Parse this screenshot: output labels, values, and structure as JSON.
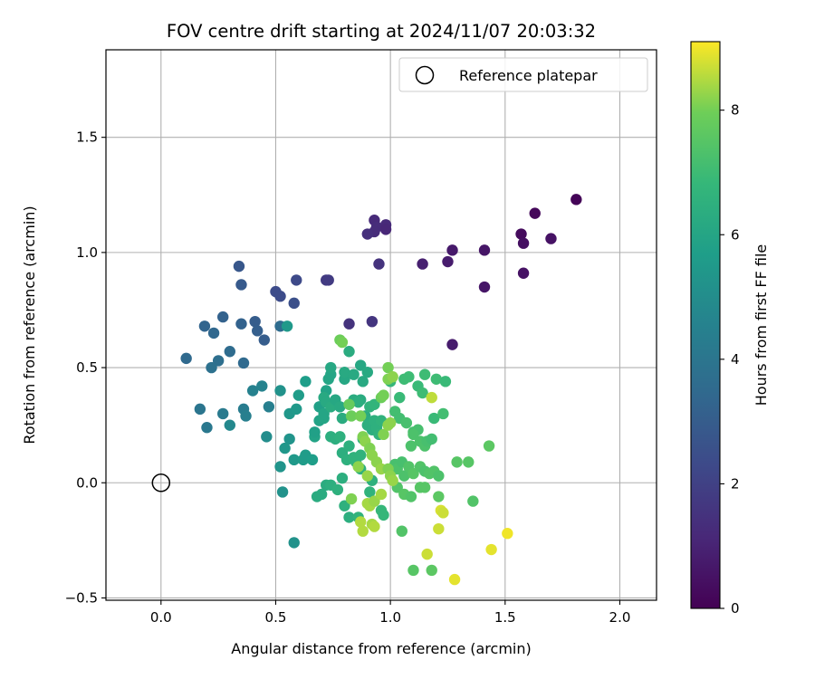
{
  "chart_data": {
    "type": "scatter",
    "title": "FOV centre drift starting at 2024/11/07 20:03:32",
    "xlabel": "Angular distance from reference (arcmin)",
    "ylabel": "Rotation from reference (arcmin)",
    "xlim": [
      -0.24,
      2.16
    ],
    "ylim": [
      -0.51,
      1.88
    ],
    "xticks": [
      0.0,
      0.5,
      1.0,
      1.5,
      2.0
    ],
    "xtick_labels": [
      "0.0",
      "0.5",
      "1.0",
      "1.5",
      "2.0"
    ],
    "yticks": [
      -0.5,
      0.0,
      0.5,
      1.0,
      1.5
    ],
    "ytick_labels": [
      "−0.5",
      "0.0",
      "0.5",
      "1.0",
      "1.5"
    ],
    "grid": true,
    "legend": {
      "position": "top-right",
      "entries": [
        "Reference platepar"
      ]
    },
    "reference": {
      "x": 0.0,
      "y": 0.0
    },
    "colorbar": {
      "label": "Hours from first FF file",
      "range": [
        0,
        9.1
      ],
      "ticks": [
        0,
        2,
        4,
        6,
        8
      ],
      "tick_labels": [
        "0",
        "2",
        "4",
        "6",
        "8"
      ],
      "colormap": "viridis"
    },
    "points": [
      [
        1.81,
        1.23,
        0.1
      ],
      [
        1.63,
        1.17,
        0.2
      ],
      [
        1.57,
        1.08,
        0.3
      ],
      [
        1.58,
        1.04,
        0.4
      ],
      [
        1.7,
        1.06,
        0.5
      ],
      [
        1.41,
        1.01,
        0.6
      ],
      [
        1.27,
        1.01,
        0.7
      ],
      [
        1.58,
        0.91,
        0.5
      ],
      [
        1.41,
        0.85,
        0.6
      ],
      [
        1.25,
        0.96,
        0.8
      ],
      [
        1.14,
        0.95,
        0.9
      ],
      [
        1.27,
        0.6,
        0.8
      ],
      [
        0.93,
        1.14,
        1.2
      ],
      [
        0.94,
        1.11,
        1.3
      ],
      [
        0.98,
        1.12,
        1.2
      ],
      [
        0.98,
        1.1,
        1.1
      ],
      [
        0.93,
        1.09,
        1.3
      ],
      [
        0.9,
        1.08,
        1.4
      ],
      [
        0.95,
        0.95,
        1.5
      ],
      [
        0.72,
        0.88,
        1.8
      ],
      [
        0.73,
        0.88,
        1.8
      ],
      [
        0.82,
        0.69,
        1.5
      ],
      [
        0.92,
        0.7,
        1.6
      ],
      [
        0.59,
        0.88,
        2.3
      ],
      [
        0.5,
        0.83,
        2.4
      ],
      [
        0.52,
        0.81,
        2.4
      ],
      [
        0.58,
        0.78,
        2.5
      ],
      [
        0.34,
        0.94,
        2.8
      ],
      [
        0.35,
        0.86,
        2.9
      ],
      [
        0.27,
        0.72,
        3.2
      ],
      [
        0.19,
        0.68,
        3.3
      ],
      [
        0.23,
        0.65,
        3.4
      ],
      [
        0.35,
        0.69,
        3.2
      ],
      [
        0.41,
        0.7,
        3.0
      ],
      [
        0.42,
        0.66,
        3.1
      ],
      [
        0.45,
        0.62,
        3.0
      ],
      [
        0.3,
        0.57,
        3.6
      ],
      [
        0.25,
        0.53,
        3.7
      ],
      [
        0.22,
        0.5,
        3.8
      ],
      [
        0.36,
        0.52,
        3.5
      ],
      [
        0.11,
        0.54,
        3.5
      ],
      [
        0.52,
        0.68,
        3.6
      ],
      [
        0.17,
        0.32,
        4.0
      ],
      [
        0.2,
        0.24,
        4.1
      ],
      [
        0.27,
        0.3,
        4.2
      ],
      [
        0.36,
        0.32,
        4.3
      ],
      [
        0.37,
        0.29,
        4.4
      ],
      [
        0.4,
        0.4,
        4.5
      ],
      [
        0.44,
        0.42,
        4.6
      ],
      [
        0.47,
        0.33,
        4.4
      ],
      [
        0.3,
        0.25,
        4.8
      ],
      [
        0.46,
        0.2,
        5.0
      ],
      [
        0.55,
        0.68,
        5.5
      ],
      [
        0.52,
        0.4,
        5.2
      ],
      [
        0.56,
        0.3,
        5.4
      ],
      [
        0.59,
        0.32,
        5.5
      ],
      [
        0.6,
        0.38,
        5.6
      ],
      [
        0.63,
        0.44,
        5.7
      ],
      [
        0.69,
        0.33,
        5.8
      ],
      [
        0.56,
        0.19,
        5.3
      ],
      [
        0.54,
        0.15,
        5.4
      ],
      [
        0.58,
        0.1,
        5.5
      ],
      [
        0.52,
        0.07,
        5.3
      ],
      [
        0.53,
        -0.04,
        5.2
      ],
      [
        0.58,
        -0.26,
        5.2
      ],
      [
        0.62,
        0.1,
        5.6
      ],
      [
        0.63,
        0.12,
        5.6
      ],
      [
        0.66,
        0.1,
        5.7
      ],
      [
        0.67,
        0.2,
        5.9
      ],
      [
        0.67,
        0.22,
        5.8
      ],
      [
        0.69,
        0.27,
        5.9
      ],
      [
        0.71,
        0.28,
        6.0
      ],
      [
        0.71,
        0.3,
        6.0
      ],
      [
        0.72,
        0.4,
        5.9
      ],
      [
        0.73,
        0.45,
        6.0
      ],
      [
        0.74,
        0.47,
        6.0
      ],
      [
        0.74,
        0.5,
        6.1
      ],
      [
        0.71,
        0.37,
        6.2
      ],
      [
        0.72,
        0.35,
        6.2
      ],
      [
        0.74,
        0.33,
        6.3
      ],
      [
        0.76,
        0.36,
        6.1
      ],
      [
        0.78,
        0.33,
        6.2
      ],
      [
        0.79,
        0.28,
        6.3
      ],
      [
        0.8,
        0.45,
        6.1
      ],
      [
        0.8,
        0.48,
        6.2
      ],
      [
        0.82,
        0.57,
        6.3
      ],
      [
        0.84,
        0.47,
        6.2
      ],
      [
        0.84,
        0.36,
        6.3
      ],
      [
        0.74,
        0.2,
        6.4
      ],
      [
        0.76,
        0.19,
        6.4
      ],
      [
        0.78,
        0.2,
        6.5
      ],
      [
        0.79,
        0.13,
        6.4
      ],
      [
        0.81,
        0.1,
        6.5
      ],
      [
        0.82,
        0.16,
        6.5
      ],
      [
        0.84,
        0.11,
        6.6
      ],
      [
        0.85,
        0.09,
        6.6
      ],
      [
        0.87,
        0.06,
        6.5
      ],
      [
        0.87,
        0.12,
        6.6
      ],
      [
        0.88,
        0.19,
        6.5
      ],
      [
        0.72,
        -0.01,
        6.3
      ],
      [
        0.74,
        -0.01,
        6.4
      ],
      [
        0.77,
        -0.03,
        6.5
      ],
      [
        0.79,
        0.02,
        6.4
      ],
      [
        0.7,
        -0.05,
        6.3
      ],
      [
        0.68,
        -0.06,
        6.3
      ],
      [
        0.8,
        -0.1,
        6.5
      ],
      [
        0.82,
        -0.15,
        6.4
      ],
      [
        0.86,
        -0.15,
        6.6
      ],
      [
        0.87,
        0.51,
        6.1
      ],
      [
        0.88,
        0.44,
        6.2
      ],
      [
        0.9,
        0.48,
        6.2
      ],
      [
        0.87,
        0.36,
        6.3
      ],
      [
        0.89,
        0.29,
        6.3
      ],
      [
        0.9,
        0.25,
        6.4
      ],
      [
        0.92,
        0.23,
        6.4
      ],
      [
        0.93,
        0.27,
        6.5
      ],
      [
        0.94,
        0.24,
        6.5
      ],
      [
        0.95,
        0.21,
        6.6
      ],
      [
        0.96,
        0.27,
        6.6
      ],
      [
        0.86,
        0.35,
        6.4
      ],
      [
        0.91,
        0.33,
        6.6
      ],
      [
        0.93,
        0.34,
        6.7
      ],
      [
        0.92,
        0.01,
        6.5
      ],
      [
        0.91,
        -0.04,
        6.6
      ],
      [
        0.93,
        -0.08,
        6.7
      ],
      [
        0.96,
        -0.12,
        6.8
      ],
      [
        0.97,
        -0.14,
        6.8
      ],
      [
        1.0,
        0.44,
        6.8
      ],
      [
        1.04,
        0.37,
        6.9
      ],
      [
        1.06,
        0.45,
        7.0
      ],
      [
        1.08,
        0.46,
        7.0
      ],
      [
        1.12,
        0.42,
        6.9
      ],
      [
        1.14,
        0.39,
        7.0
      ],
      [
        1.15,
        0.47,
        7.0
      ],
      [
        1.2,
        0.45,
        7.0
      ],
      [
        1.24,
        0.44,
        6.9
      ],
      [
        1.19,
        0.28,
        6.9
      ],
      [
        1.23,
        0.3,
        7.1
      ],
      [
        1.02,
        0.31,
        7.1
      ],
      [
        1.04,
        0.28,
        7.1
      ],
      [
        1.07,
        0.26,
        7.2
      ],
      [
        1.1,
        0.22,
        7.2
      ],
      [
        1.12,
        0.23,
        7.2
      ],
      [
        1.13,
        0.18,
        7.3
      ],
      [
        1.15,
        0.16,
        7.3
      ],
      [
        1.16,
        0.18,
        7.2
      ],
      [
        1.18,
        0.19,
        7.1
      ],
      [
        1.09,
        0.16,
        7.3
      ],
      [
        1.1,
        0.21,
        7.3
      ],
      [
        1.02,
        0.08,
        7.2
      ],
      [
        1.03,
        0.06,
        7.3
      ],
      [
        1.05,
        0.09,
        7.2
      ],
      [
        1.06,
        0.03,
        7.3
      ],
      [
        1.08,
        0.07,
        7.4
      ],
      [
        1.1,
        0.04,
        7.5
      ],
      [
        1.13,
        0.07,
        7.4
      ],
      [
        1.15,
        0.05,
        7.3
      ],
      [
        1.17,
        0.04,
        7.4
      ],
      [
        1.19,
        0.05,
        7.4
      ],
      [
        1.21,
        0.03,
        7.3
      ],
      [
        1.03,
        -0.02,
        7.4
      ],
      [
        1.06,
        -0.05,
        7.5
      ],
      [
        1.09,
        -0.06,
        7.4
      ],
      [
        1.13,
        -0.02,
        7.5
      ],
      [
        1.15,
        -0.02,
        7.5
      ],
      [
        1.21,
        -0.06,
        7.6
      ],
      [
        1.29,
        0.09,
        7.5
      ],
      [
        1.34,
        0.09,
        7.5
      ],
      [
        1.36,
        -0.08,
        7.4
      ],
      [
        1.43,
        0.16,
        7.6
      ],
      [
        1.05,
        -0.21,
        7.4
      ],
      [
        1.1,
        -0.38,
        7.5
      ],
      [
        1.18,
        -0.38,
        7.6
      ],
      [
        0.78,
        0.62,
        7.9
      ],
      [
        0.79,
        0.61,
        8.0
      ],
      [
        0.82,
        0.34,
        7.8
      ],
      [
        0.83,
        0.29,
        7.9
      ],
      [
        0.87,
        0.29,
        8.0
      ],
      [
        0.88,
        0.2,
        8.1
      ],
      [
        0.89,
        0.18,
        8.2
      ],
      [
        0.91,
        0.15,
        8.1
      ],
      [
        0.92,
        0.12,
        8.2
      ],
      [
        0.94,
        0.09,
        8.2
      ],
      [
        0.96,
        0.06,
        8.3
      ],
      [
        0.96,
        0.37,
        7.9
      ],
      [
        0.97,
        0.38,
        8.0
      ],
      [
        0.99,
        0.5,
        8.0
      ],
      [
        0.99,
        0.45,
        8.1
      ],
      [
        1.01,
        0.46,
        8.2
      ],
      [
        0.97,
        0.21,
        8.1
      ],
      [
        0.99,
        0.25,
        8.2
      ],
      [
        1.0,
        0.26,
        8.2
      ],
      [
        0.99,
        0.06,
        8.1
      ],
      [
        1.0,
        0.03,
        8.2
      ],
      [
        1.01,
        0.01,
        8.3
      ],
      [
        0.83,
        -0.07,
        8.1
      ],
      [
        0.86,
        0.07,
        8.2
      ],
      [
        0.9,
        0.03,
        8.3
      ],
      [
        0.9,
        -0.09,
        8.4
      ],
      [
        0.91,
        -0.1,
        8.4
      ],
      [
        0.93,
        -0.08,
        8.3
      ],
      [
        0.96,
        -0.05,
        8.4
      ],
      [
        0.87,
        -0.17,
        8.5
      ],
      [
        0.88,
        -0.21,
        8.5
      ],
      [
        0.92,
        -0.18,
        8.4
      ],
      [
        0.93,
        -0.19,
        8.5
      ],
      [
        1.18,
        0.37,
        8.6
      ],
      [
        1.21,
        -0.2,
        8.7
      ],
      [
        1.22,
        -0.12,
        8.8
      ],
      [
        1.23,
        -0.13,
        8.7
      ],
      [
        1.16,
        -0.31,
        8.7
      ],
      [
        1.28,
        -0.42,
        8.9
      ],
      [
        1.44,
        -0.29,
        8.9
      ],
      [
        1.51,
        -0.22,
        9.0
      ]
    ]
  }
}
